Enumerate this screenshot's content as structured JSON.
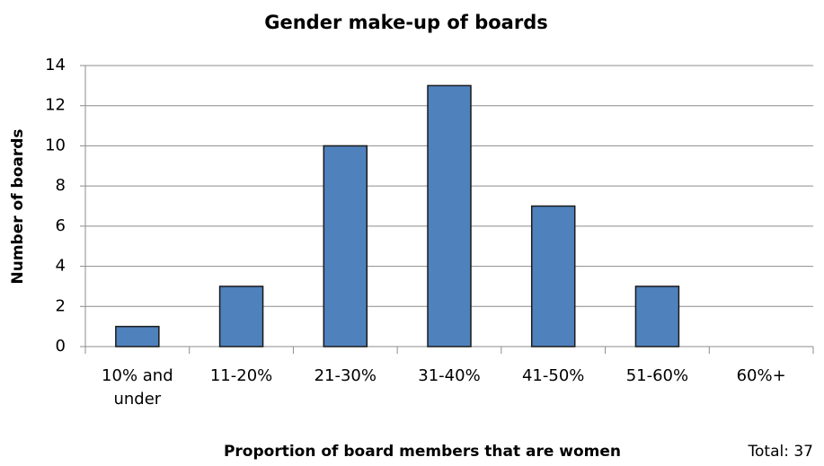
{
  "chart_data": {
    "type": "bar",
    "title": "Gender make-up of boards",
    "x_label": "Proportion of board members that are women",
    "y_label": "Number of boards",
    "annotation": "Total: 37",
    "categories": [
      "10% and under",
      "11-20%",
      "21-30%",
      "31-40%",
      "41-50%",
      "51-60%",
      "60%+"
    ],
    "values": [
      1,
      3,
      10,
      13,
      7,
      3,
      0
    ],
    "color": "#4f81bd",
    "ylim": [
      0,
      14
    ],
    "yticks": [
      0,
      2,
      4,
      6,
      8,
      10,
      12,
      14
    ],
    "grid": true
  }
}
